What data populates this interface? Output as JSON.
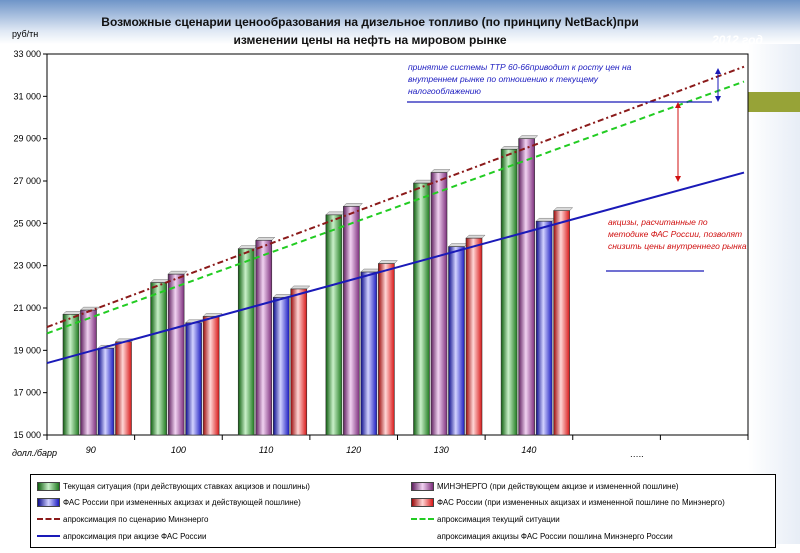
{
  "title": "Возможные сценарии ценообразования на дизельное топливо (по принципу NetBack)при изменении цены на нефть на мировом рынке",
  "year_label": "2012 год",
  "y_unit": "руб/тн",
  "x_unit": "долл./барр",
  "dots_label": "…..",
  "annotations": {
    "top": "принятие системы ТТР 60-66приводит к росту цен на внутреннем рынке по отношению к текущему налогооблажению",
    "right": "акцизы, расчитанные по методике ФАС России, позволят снизить цены внутреннего рынка"
  },
  "colors": {
    "green": "#2e8b2e",
    "purple": "#a04aa0",
    "blue": "#2a2ad8",
    "red": "#e02020",
    "dark_red_dash": "#8b1a1a",
    "green_dash": "#22cc22",
    "trend_blue": "#1a1ab8"
  },
  "legend": [
    {
      "key": "current",
      "label": "Текущая ситуация (при действующих ставках акцизов и пошлины)"
    },
    {
      "key": "minenergo",
      "label": "МИНЭНЕРГО (при действующем акцизе и измененной пошлине)"
    },
    {
      "key": "fas1",
      "label": "ФАС России при измененных акцизах и действующей пошлине)"
    },
    {
      "key": "fas2",
      "label": "ФАС России (при измененных акцизах и измененной пошлине по Минэнерго)"
    },
    {
      "key": "approx_minenergo",
      "label": "апроксимация по сценарию Минэнерго"
    },
    {
      "key": "approx_current",
      "label": "апроксимация текущий ситуации"
    },
    {
      "key": "approx_fas",
      "label": "апроксимация при акцизе ФАС России"
    },
    {
      "key": "approx_fas_minenergo",
      "label": "апроксимация акцизы ФАС России пошлина Минэнерго России"
    }
  ],
  "chart_data": {
    "type": "bar",
    "title": "Возможные сценарии ценообразования на дизельное топливо (по принципу NetBack)при изменении цены на нефть на мировом рынке",
    "xlabel": "долл./барр",
    "ylabel": "руб/тн",
    "ylim": [
      15000,
      33000
    ],
    "yticks": [
      15000,
      17000,
      19000,
      21000,
      23000,
      25000,
      27000,
      29000,
      31000,
      33000
    ],
    "categories": [
      "90",
      "100",
      "110",
      "120",
      "130",
      "140"
    ],
    "series": [
      {
        "name": "Текущая ситуация (при действующих ставках акцизов и пошлины)",
        "values": [
          20700,
          22200,
          23800,
          25400,
          26900,
          28500
        ]
      },
      {
        "name": "МИНЭНЕРГО (при действующем акцизе и измененной пошлине)",
        "values": [
          20900,
          22600,
          24200,
          25800,
          27400,
          29000
        ]
      },
      {
        "name": "ФАС России при измененных акцизах и действующей пошлине)",
        "values": [
          19100,
          20300,
          21500,
          22700,
          23900,
          25100
        ]
      },
      {
        "name": "ФАС России (при измененных акцизах и измененной пошлине по Минэнерго)",
        "values": [
          19400,
          20600,
          21900,
          23100,
          24300,
          25600
        ]
      }
    ],
    "trend_lines": [
      {
        "name": "апроксимация по сценарию Минэнерго",
        "x_start": 0,
        "x_end": 8,
        "y_start": 20100,
        "y_end": 32400
      },
      {
        "name": "апроксимация текущий ситуации",
        "x_start": 0,
        "x_end": 8,
        "y_start": 19800,
        "y_end": 31700
      },
      {
        "name": "апроксимация при акцизе ФАС России",
        "x_start": 0,
        "x_end": 8,
        "y_start": 18400,
        "y_end": 27400
      }
    ]
  }
}
